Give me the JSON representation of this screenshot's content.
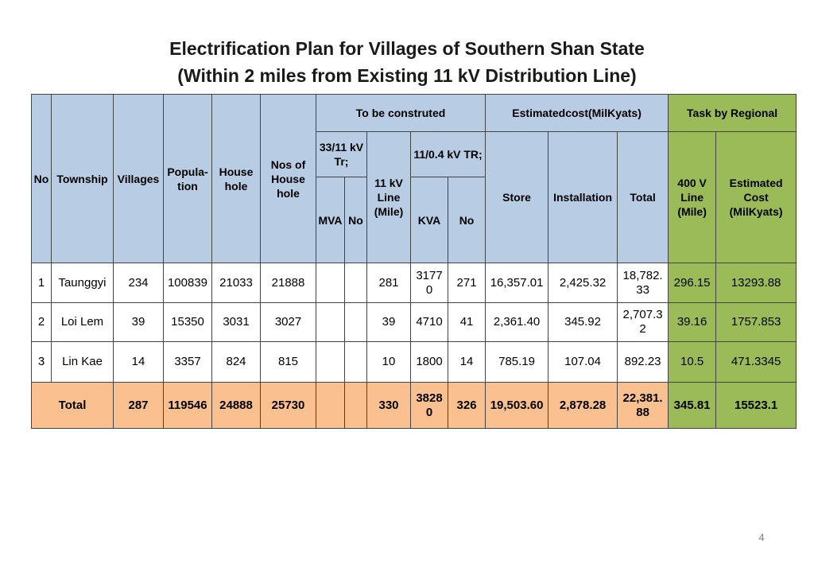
{
  "title": {
    "line1": "Electrification Plan for Villages  of Southern Shan State",
    "line2": "(Within 2 miles from Existing 11 kV Distribution Line)"
  },
  "headers": {
    "no": "No",
    "township": "Township",
    "villages": "Villages",
    "population": "Popula-tion",
    "household": "House hole",
    "nos_household": "Nos of House hole",
    "to_be_constructed": "To be construted",
    "tr_33_11": "33/11 kV Tr;",
    "mva": "MVA",
    "no_sub": "No",
    "line_11kv": "11 kV Line (Mile)",
    "tr_11_04": "11/0.4 kV TR;",
    "kva": "KVA",
    "no_sub2": "No",
    "estimated_cost": "Estimatedcost(MilKyats)",
    "store": "Store",
    "installation": "Installation",
    "total": "Total",
    "task_regional": "Task by Regional",
    "line_400v": "400 V Line (Mile)",
    "estimated_cost_regional": "Estimated Cost (MilKyats)"
  },
  "rows": [
    {
      "no": "1",
      "township": "Taunggyi",
      "villages": "234",
      "population": "100839",
      "household": "21033",
      "nos_household": "21888",
      "mva": "",
      "no33": "",
      "line11": "281",
      "kva": "3177 0",
      "no11": "271",
      "store": "16,357.01",
      "installation": "2,425.32",
      "total": "18,782. 33",
      "line400": "296.15",
      "cost": "13293.88"
    },
    {
      "no": "2",
      "township": "Loi Lem",
      "villages": "39",
      "population": "15350",
      "household": "3031",
      "nos_household": "3027",
      "mva": "",
      "no33": "",
      "line11": "39",
      "kva": "4710",
      "no11": "41",
      "store": "2,361.40",
      "installation": "345.92",
      "total": "2,707.3 2",
      "line400": "39.16",
      "cost": "1757.853"
    },
    {
      "no": "3",
      "township": "Lin Kae",
      "villages": "14",
      "population": "3357",
      "household": "824",
      "nos_household": "815",
      "mva": "",
      "no33": "",
      "line11": "10",
      "kva": "1800",
      "no11": "14",
      "store": "785.19",
      "installation": "107.04",
      "total": "892.23",
      "line400": "10.5",
      "cost": "471.3345"
    }
  ],
  "total_row": {
    "label": "Total",
    "villages": "287",
    "population": "119546",
    "household": "24888",
    "nos_household": "25730",
    "mva": "",
    "no33": "",
    "line11": "330",
    "kva": "3828 0",
    "no11": "326",
    "store": "19,503.60",
    "installation": "2,878.28",
    "total": "22,381. 88",
    "line400": "345.81",
    "cost": "15523.1"
  },
  "page_number": "4",
  "colors": {
    "header_blue": "#b8cce4",
    "task_green": "#9bbb59",
    "total_orange": "#fac090"
  }
}
